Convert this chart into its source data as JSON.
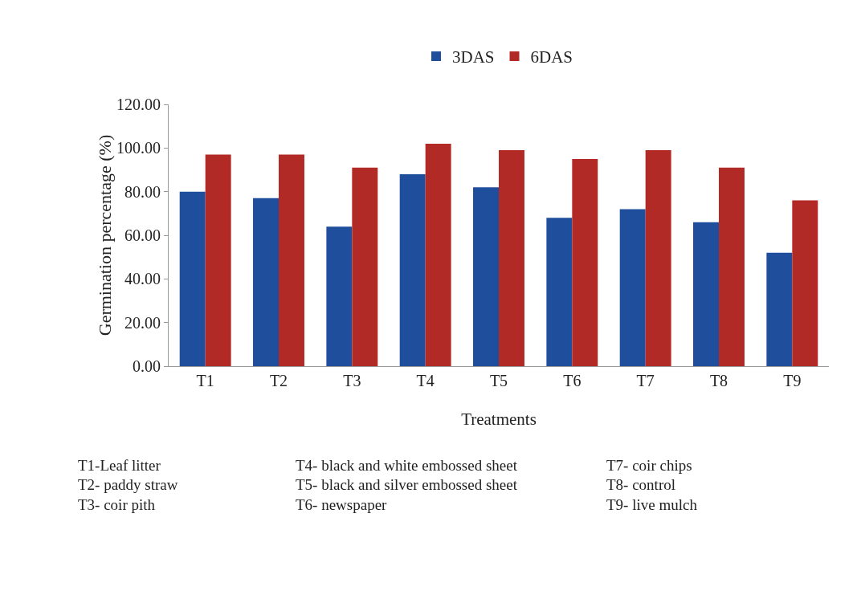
{
  "chart_data": {
    "type": "bar",
    "xlabel": "Treatments",
    "ylabel": "Germination percentage (%)",
    "categories": [
      "T1",
      "T2",
      "T3",
      "T4",
      "T5",
      "T6",
      "T7",
      "T8",
      "T9"
    ],
    "series": [
      {
        "name": "3DAS",
        "color": "#1f4e9c",
        "values": [
          80,
          77,
          64,
          88,
          82,
          68,
          72,
          66,
          52
        ]
      },
      {
        "name": "6DAS",
        "color": "#b22a25",
        "values": [
          97,
          97,
          91,
          102,
          99,
          95,
          99,
          91,
          76
        ]
      }
    ],
    "ylim": [
      0,
      120
    ],
    "yticks": [
      {
        "value": 0,
        "label": "0.00"
      },
      {
        "value": 20,
        "label": "20.00"
      },
      {
        "value": 40,
        "label": "40.00"
      },
      {
        "value": 60,
        "label": "60.00"
      },
      {
        "value": 80,
        "label": "80.00"
      },
      {
        "value": 100,
        "label": "100.00"
      },
      {
        "value": 120,
        "label": "120.00"
      }
    ],
    "grid": false,
    "legend": "top",
    "annotations": [
      "T1-Leaf litter",
      "T2- paddy straw",
      "T3- coir pith",
      "T4- black and white embossed sheet",
      "T5- black and silver embossed sheet",
      "T6- newspaper",
      "T7- coir chips",
      "T8- control",
      "T9- live mulch"
    ]
  }
}
